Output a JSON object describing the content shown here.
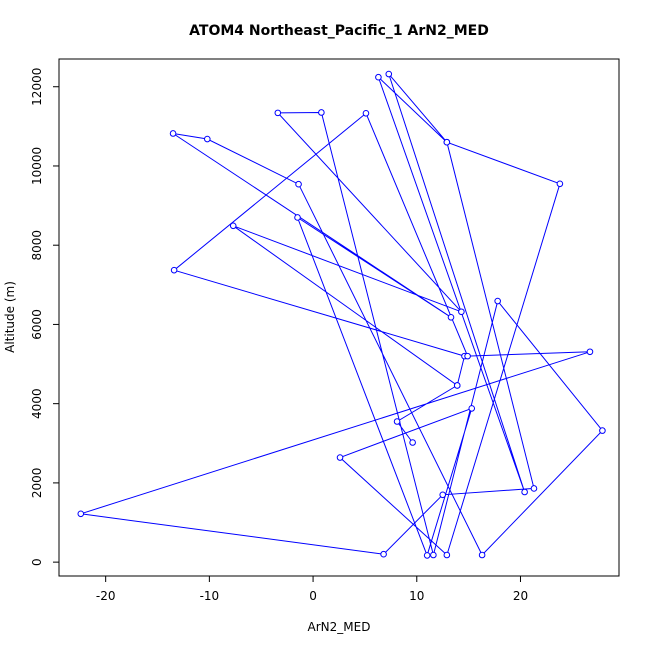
{
  "chart_data": {
    "type": "line",
    "title": "ATOM4 Northeast_Pacific_1 ArN2_MED",
    "xlabel": "ArN2_MED",
    "ylabel": "Altitude (m)",
    "xlim": [
      -24.5,
      29.5
    ],
    "ylim": [
      -350,
      12700
    ],
    "xticks": [
      -20,
      -10,
      0,
      10,
      20
    ],
    "yticks": [
      0,
      2000,
      4000,
      6000,
      8000,
      10000,
      12000
    ],
    "grid": false,
    "legend": "none",
    "line_color": "#0000ff",
    "marker": "open-circle",
    "series": [
      {
        "x": [
          13.9,
          14.6,
          -13.4,
          5.1,
          14.9,
          26.7,
          -22.4,
          6.8,
          12.5,
          21.3,
          12.9,
          6.3,
          20.4,
          7.3,
          12.9,
          23.8,
          12.9,
          2.6,
          15.3,
          11.0,
          -1.5,
          13.3,
          -13.5,
          -10.2,
          -1.4,
          16.3,
          27.9,
          17.8,
          11.6,
          0.8,
          -3.4,
          14.3,
          -7.7,
          13.9,
          8.1,
          9.6
        ],
        "y": [
          4460,
          5200,
          7370,
          11330,
          5200,
          5310,
          1220,
          200,
          1700,
          1860,
          10600,
          12240,
          1770,
          12320,
          10600,
          9550,
          180,
          2640,
          3880,
          170,
          8700,
          6180,
          10820,
          10680,
          9540,
          180,
          3320,
          6590,
          180,
          11350,
          11340,
          6320,
          8490,
          4460,
          3550,
          3020
        ]
      }
    ]
  }
}
